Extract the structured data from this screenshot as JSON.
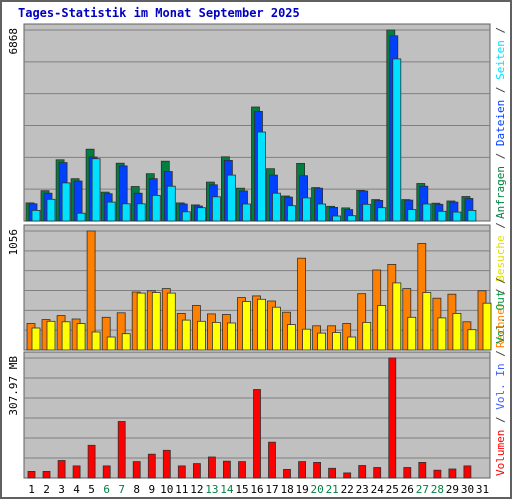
{
  "chart_data": {
    "type": "bar",
    "title": "Tages-Statistik im Monat September 2025",
    "categories": [
      "1",
      "2",
      "3",
      "4",
      "5",
      "6",
      "7",
      "8",
      "9",
      "10",
      "11",
      "12",
      "13",
      "14",
      "15",
      "16",
      "17",
      "18",
      "19",
      "20",
      "21",
      "22",
      "23",
      "24",
      "25",
      "26",
      "27",
      "28",
      "29",
      "30",
      "31"
    ],
    "weekend_days": [
      "6",
      "7",
      "13",
      "14",
      "20",
      "21",
      "27",
      "28"
    ],
    "panels": [
      {
        "name": "top",
        "axis_label": "6868",
        "ymax": 6868,
        "series": [
          {
            "name": "Anfragen",
            "color": "#008040",
            "values": [
              650,
              1090,
              2200,
              1520,
              2580,
              1040,
              2080,
              1240,
              1700,
              2150,
              650,
              580,
              1400,
              2310,
              1180,
              4100,
              1880,
              900,
              2070,
              1200,
              530,
              470,
              1100,
              770,
              6868,
              770,
              1350,
              640,
              720,
              880,
              0
            ]
          },
          {
            "name": "Dateien",
            "color": "#0040ff",
            "values": [
              620,
              1000,
              2100,
              1440,
              2300,
              980,
              1980,
              1000,
              1520,
              1780,
              610,
              540,
              1300,
              2180,
              1080,
              3940,
              1650,
              860,
              1630,
              1180,
              490,
              410,
              1080,
              740,
              6660,
              750,
              1250,
              600,
              680,
              810,
              0
            ]
          },
          {
            "name": "Seiten",
            "color": "#00e0ff",
            "values": [
              380,
              780,
              1370,
              280,
              2240,
              680,
              620,
              620,
              920,
              1250,
              330,
              480,
              870,
              1650,
              610,
              3200,
              1000,
              550,
              830,
              610,
              180,
              190,
              600,
              480,
              5830,
              410,
              610,
              350,
              320,
              380,
              0
            ]
          }
        ],
        "legend_labels": [
          "Anfragen",
          "/",
          "Dateien",
          "/",
          "Seiten",
          "/"
        ],
        "legend_colors": [
          "#008040",
          "#404040",
          "#0040ff",
          "#404040",
          "#00e0ff",
          "#404040"
        ]
      },
      {
        "name": "middle",
        "axis_label": "1056",
        "ymax": 1056,
        "series": [
          {
            "name": "Rechner",
            "color": "#ff8000",
            "values": [
              235,
              270,
              305,
              275,
              1056,
              290,
              330,
              515,
              525,
              545,
              325,
              395,
              320,
              315,
              465,
              480,
              435,
              335,
              815,
              215,
              215,
              235,
              500,
              710,
              760,
              545,
              945,
              460,
              495,
              250,
              525
            ]
          },
          {
            "name": "Besuche",
            "color": "#ffff00",
            "values": [
              195,
              255,
              250,
              235,
              160,
              115,
              145,
              505,
              510,
              505,
              265,
              255,
              245,
              240,
              430,
              450,
              380,
              225,
              185,
              150,
              155,
              115,
              245,
              395,
              595,
              290,
              510,
              285,
              325,
              180,
              415
            ]
          }
        ],
        "legend_labels": [
          "Rechner",
          "/",
          "Besuche",
          "/"
        ],
        "legend_colors": [
          "#ff8000",
          "#404040",
          "#e0e000",
          "#404040"
        ]
      },
      {
        "name": "bottom",
        "axis_label": "307.97 MB",
        "ymax": 307.97,
        "series": [
          {
            "name": "Volumen",
            "color": "#ff0000",
            "values": [
              17,
              17,
              45,
              31,
              84,
              31,
              145,
              42,
              61,
              71,
              31,
              37,
              54,
              43,
              42,
              227,
              92,
              22,
              42,
              40,
              25,
              13,
              32,
              27,
              307.97,
              27,
              40,
              20,
              23,
              31,
              0
            ]
          }
        ],
        "legend_labels": [
          "Volumen",
          "/",
          "Vol. In",
          "/",
          "Vol. Out",
          "/"
        ],
        "legend_colors": [
          "#ff0000",
          "#404040",
          "#4060ff",
          "#404040",
          "#00a040",
          "#404040"
        ]
      }
    ],
    "colors": {
      "title": "#0000c0",
      "frame": "#606060",
      "plot_bg": "#c0c0c0",
      "grid": "#808080",
      "weekday_label": "#000000",
      "weekend_label": "#008040"
    }
  }
}
